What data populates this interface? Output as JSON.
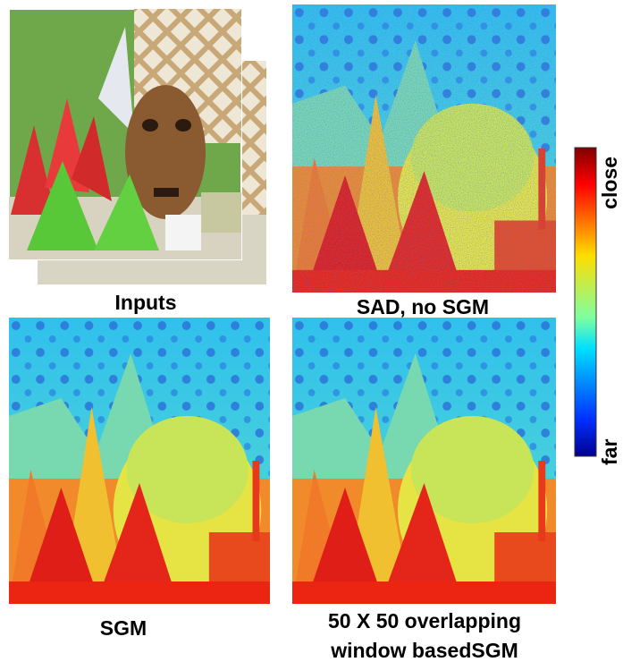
{
  "panels": [
    {
      "caption": "Inputs"
    },
    {
      "caption": "SAD, no SGM"
    },
    {
      "caption": "SGM"
    },
    {
      "caption_lines": [
        "50 X 50 overlapping",
        "window basedSGM"
      ]
    }
  ],
  "colorbar": {
    "top_label": "close",
    "bottom_label": "far"
  }
}
